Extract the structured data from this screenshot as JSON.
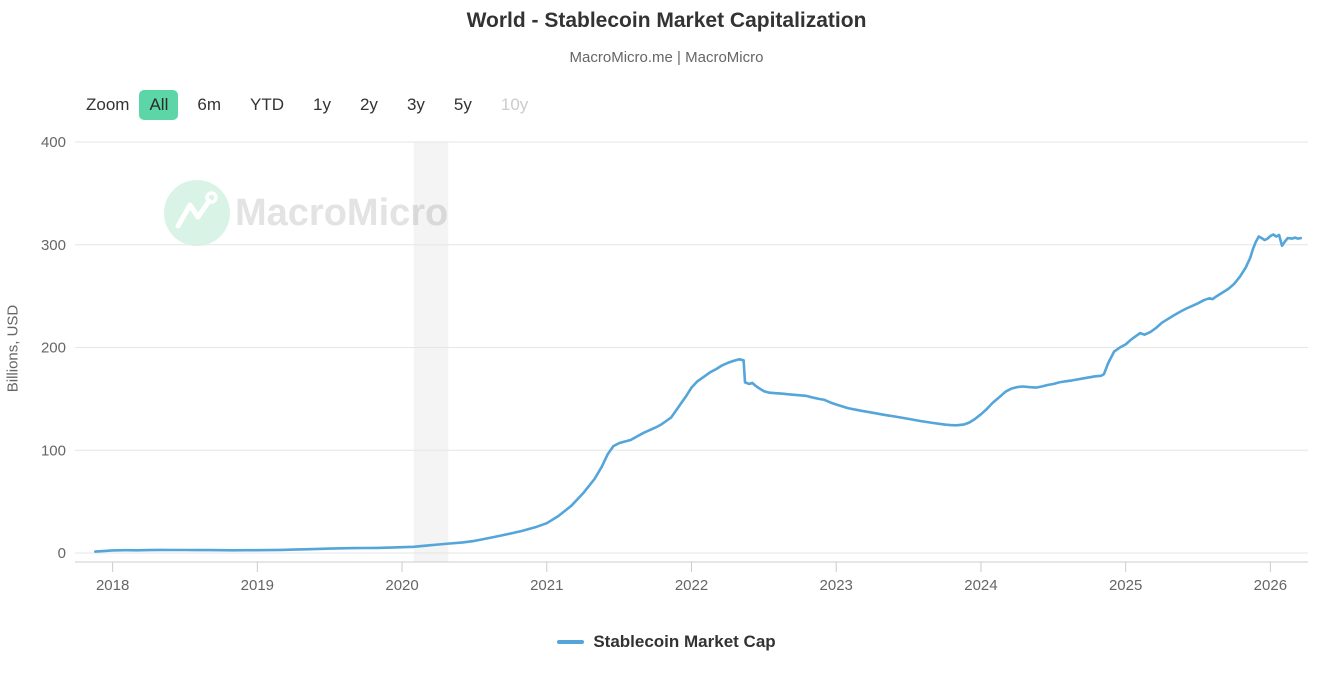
{
  "watermark": {
    "text": "MacroMicro"
  },
  "colors": {
    "title_text": "#333333",
    "subtitle_text": "#666666",
    "selected_range_bg": "#5cd6a6",
    "disabled_range_text": "#cccccc",
    "grid": "#e6e6e6",
    "axis_line": "#cccccc",
    "tick_label": "#666666",
    "series_line": "#54a5da",
    "recession_band": "rgba(0,0,0,0.045)",
    "watermark_text": "#e3e3e3",
    "watermark_circle": "#d9f3e7"
  },
  "range_selector": {
    "zoom_label": "Zoom",
    "buttons": [
      {
        "label": "All",
        "state": "selected"
      },
      {
        "label": "6m",
        "state": "normal"
      },
      {
        "label": "YTD",
        "state": "normal"
      },
      {
        "label": "1y",
        "state": "normal"
      },
      {
        "label": "2y",
        "state": "normal"
      },
      {
        "label": "3y",
        "state": "normal"
      },
      {
        "label": "5y",
        "state": "normal"
      },
      {
        "label": "10y",
        "state": "disabled"
      }
    ]
  },
  "chart_data": {
    "type": "line",
    "title": "World - Stablecoin Market Capitalization",
    "subtitle": "MacroMicro.me | MacroMicro",
    "xlabel": "",
    "ylabel": "Billions, USD",
    "xlim": [
      2017.74,
      2026.26
    ],
    "ylim": [
      0,
      400
    ],
    "x_ticks": [
      2018,
      2019,
      2020,
      2021,
      2022,
      2023,
      2024,
      2025,
      2026
    ],
    "y_ticks": [
      0,
      100,
      200,
      300,
      400
    ],
    "grid": true,
    "legend_position": "bottom",
    "plot_band": {
      "name": "recession-band-covid-2020",
      "x_start": 2020.08,
      "x_end": 2020.32,
      "color": "rgba(0,0,0,0.045)"
    },
    "series": [
      {
        "name": "Stablecoin Market Cap",
        "color": "#54a5da",
        "points": [
          [
            2017.88,
            1.4
          ],
          [
            2018.0,
            2.5
          ],
          [
            2018.08,
            2.7
          ],
          [
            2018.17,
            2.6
          ],
          [
            2018.25,
            2.8
          ],
          [
            2018.33,
            3.0
          ],
          [
            2018.42,
            2.9
          ],
          [
            2018.5,
            2.9
          ],
          [
            2018.58,
            2.8
          ],
          [
            2018.67,
            2.8
          ],
          [
            2018.75,
            2.7
          ],
          [
            2018.83,
            2.6
          ],
          [
            2018.92,
            2.7
          ],
          [
            2019.0,
            2.7
          ],
          [
            2019.08,
            2.8
          ],
          [
            2019.17,
            3.0
          ],
          [
            2019.25,
            3.3
          ],
          [
            2019.33,
            3.6
          ],
          [
            2019.42,
            4.0
          ],
          [
            2019.5,
            4.3
          ],
          [
            2019.58,
            4.6
          ],
          [
            2019.67,
            4.8
          ],
          [
            2019.75,
            4.9
          ],
          [
            2019.83,
            5.0
          ],
          [
            2019.92,
            5.3
          ],
          [
            2020.0,
            5.6
          ],
          [
            2020.08,
            6.0
          ],
          [
            2020.17,
            7.2
          ],
          [
            2020.25,
            8.3
          ],
          [
            2020.33,
            9.2
          ],
          [
            2020.42,
            10.3
          ],
          [
            2020.5,
            11.8
          ],
          [
            2020.58,
            14.0
          ],
          [
            2020.67,
            16.5
          ],
          [
            2020.75,
            19.0
          ],
          [
            2020.83,
            21.5
          ],
          [
            2020.92,
            25.0
          ],
          [
            2021.0,
            29.0
          ],
          [
            2021.08,
            36.0
          ],
          [
            2021.17,
            46.0
          ],
          [
            2021.25,
            58.0
          ],
          [
            2021.33,
            72.0
          ],
          [
            2021.38,
            84.0
          ],
          [
            2021.42,
            96.0
          ],
          [
            2021.46,
            104.0
          ],
          [
            2021.5,
            107.0
          ],
          [
            2021.54,
            108.5
          ],
          [
            2021.58,
            110.0
          ],
          [
            2021.63,
            114.0
          ],
          [
            2021.67,
            117.0
          ],
          [
            2021.71,
            119.5
          ],
          [
            2021.75,
            122.0
          ],
          [
            2021.79,
            125.0
          ],
          [
            2021.83,
            129.0
          ],
          [
            2021.86,
            132.0
          ],
          [
            2021.88,
            136.0
          ],
          [
            2021.92,
            144.0
          ],
          [
            2021.96,
            152.0
          ],
          [
            2022.0,
            161.0
          ],
          [
            2022.04,
            167.0
          ],
          [
            2022.08,
            171.0
          ],
          [
            2022.13,
            176.0
          ],
          [
            2022.17,
            179.0
          ],
          [
            2022.21,
            182.5
          ],
          [
            2022.25,
            185.0
          ],
          [
            2022.29,
            187.0
          ],
          [
            2022.33,
            188.5
          ],
          [
            2022.36,
            187.5
          ],
          [
            2022.37,
            166.0
          ],
          [
            2022.4,
            164.5
          ],
          [
            2022.42,
            165.5
          ],
          [
            2022.44,
            163.0
          ],
          [
            2022.46,
            161.0
          ],
          [
            2022.5,
            157.5
          ],
          [
            2022.54,
            156.0
          ],
          [
            2022.58,
            155.5
          ],
          [
            2022.63,
            155.0
          ],
          [
            2022.67,
            154.5
          ],
          [
            2022.71,
            154.0
          ],
          [
            2022.75,
            153.5
          ],
          [
            2022.79,
            153.0
          ],
          [
            2022.83,
            151.5
          ],
          [
            2022.88,
            150.0
          ],
          [
            2022.92,
            149.0
          ],
          [
            2022.96,
            146.5
          ],
          [
            2023.0,
            144.5
          ],
          [
            2023.08,
            141.0
          ],
          [
            2023.17,
            138.5
          ],
          [
            2023.25,
            136.5
          ],
          [
            2023.33,
            134.5
          ],
          [
            2023.42,
            132.5
          ],
          [
            2023.5,
            130.5
          ],
          [
            2023.58,
            128.5
          ],
          [
            2023.67,
            126.5
          ],
          [
            2023.75,
            125.0
          ],
          [
            2023.79,
            124.5
          ],
          [
            2023.83,
            124.3
          ],
          [
            2023.88,
            125.0
          ],
          [
            2023.92,
            127.0
          ],
          [
            2023.96,
            130.5
          ],
          [
            2024.0,
            135.0
          ],
          [
            2024.04,
            140.0
          ],
          [
            2024.08,
            146.0
          ],
          [
            2024.13,
            152.0
          ],
          [
            2024.17,
            157.0
          ],
          [
            2024.21,
            160.0
          ],
          [
            2024.25,
            161.5
          ],
          [
            2024.29,
            162.0
          ],
          [
            2024.33,
            161.5
          ],
          [
            2024.38,
            161.0
          ],
          [
            2024.42,
            162.0
          ],
          [
            2024.46,
            163.5
          ],
          [
            2024.5,
            164.5
          ],
          [
            2024.54,
            166.0
          ],
          [
            2024.58,
            167.0
          ],
          [
            2024.63,
            168.0
          ],
          [
            2024.67,
            169.0
          ],
          [
            2024.71,
            170.0
          ],
          [
            2024.75,
            171.0
          ],
          [
            2024.79,
            172.0
          ],
          [
            2024.83,
            172.5
          ],
          [
            2024.85,
            174.0
          ],
          [
            2024.88,
            185.0
          ],
          [
            2024.92,
            196.0
          ],
          [
            2024.96,
            200.0
          ],
          [
            2025.0,
            203.0
          ],
          [
            2025.04,
            208.0
          ],
          [
            2025.08,
            212.0
          ],
          [
            2025.1,
            214.0
          ],
          [
            2025.13,
            212.5
          ],
          [
            2025.17,
            215.0
          ],
          [
            2025.21,
            219.0
          ],
          [
            2025.25,
            224.0
          ],
          [
            2025.29,
            227.5
          ],
          [
            2025.33,
            231.0
          ],
          [
            2025.38,
            235.0
          ],
          [
            2025.42,
            238.0
          ],
          [
            2025.46,
            240.5
          ],
          [
            2025.5,
            243.0
          ],
          [
            2025.54,
            246.0
          ],
          [
            2025.58,
            248.0
          ],
          [
            2025.6,
            247.0
          ],
          [
            2025.63,
            250.0
          ],
          [
            2025.67,
            253.5
          ],
          [
            2025.71,
            257.0
          ],
          [
            2025.75,
            262.0
          ],
          [
            2025.79,
            269.0
          ],
          [
            2025.83,
            278.0
          ],
          [
            2025.86,
            287.0
          ],
          [
            2025.88,
            296.0
          ],
          [
            2025.9,
            303.0
          ],
          [
            2025.92,
            308.0
          ],
          [
            2025.94,
            306.5
          ],
          [
            2025.96,
            304.5
          ],
          [
            2025.98,
            306.0
          ],
          [
            2026.0,
            308.5
          ],
          [
            2026.02,
            310.0
          ],
          [
            2026.04,
            308.0
          ],
          [
            2026.06,
            309.5
          ],
          [
            2026.08,
            299.0
          ],
          [
            2026.1,
            303.0
          ],
          [
            2026.12,
            306.5
          ],
          [
            2026.15,
            306.0
          ],
          [
            2026.17,
            307.0
          ],
          [
            2026.19,
            306.0
          ],
          [
            2026.21,
            306.5
          ]
        ]
      }
    ]
  }
}
